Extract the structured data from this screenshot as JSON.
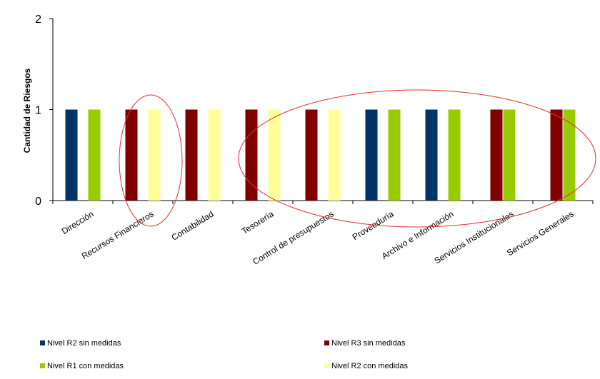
{
  "chart_data": {
    "type": "bar",
    "ylabel": "Cantidad de Riesgos",
    "xlabel": "",
    "ylim": [
      0,
      2
    ],
    "yticks": [
      0,
      1,
      2
    ],
    "grid": false,
    "legend_position": "bottom",
    "categories": [
      "Dirección",
      "Recursos Financieros",
      "Contabilidad",
      "Tesorería",
      "Control de presupuestos",
      "Proveeduría",
      "Archivo e Información",
      "Servicios Institucionales",
      "Servicios Generales"
    ],
    "series": [
      {
        "name": "Nivel R2 sin medidas",
        "color": "#003366",
        "values": [
          1,
          0,
          0,
          0,
          0,
          1,
          1,
          0,
          0
        ]
      },
      {
        "name": "Nivel R3 sin medidas",
        "color": "#800000",
        "values": [
          0,
          1,
          1,
          1,
          1,
          0,
          0,
          1,
          1
        ]
      },
      {
        "name": "Nivel R1 con medidas",
        "color": "#99cc00",
        "values": [
          1,
          0,
          0,
          0,
          0,
          1,
          1,
          1,
          1
        ]
      },
      {
        "name": "Nivel R2 con medidas",
        "color": "#ffff99",
        "values": [
          0,
          1,
          1,
          1,
          1,
          0,
          0,
          0,
          0
        ]
      }
    ],
    "annotation_color": "#e03030"
  }
}
